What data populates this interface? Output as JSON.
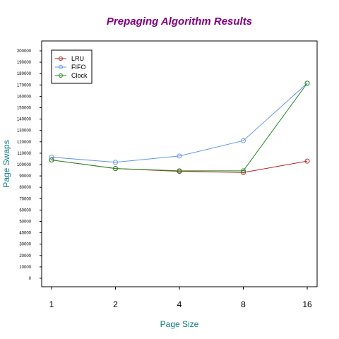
{
  "chart_data": {
    "type": "line",
    "title": "Prepaging Algorithm Results",
    "xlabel": "Page Size",
    "ylabel": "Page Swaps",
    "categories": [
      "1",
      "2",
      "4",
      "8",
      "16"
    ],
    "yticks": [
      "0",
      "10000",
      "20000",
      "30000",
      "40000",
      "50000",
      "60000",
      "70000",
      "80000",
      "90000",
      "100000",
      "110000",
      "120000",
      "130000",
      "140000",
      "150000",
      "160000",
      "170000",
      "180000",
      "190000",
      "200000"
    ],
    "ylim": [
      0,
      200000
    ],
    "grid": false,
    "legend_position": "top-left",
    "series": [
      {
        "name": "LRU",
        "color": "#b22222",
        "line_style": "solid",
        "marker": "open-circle",
        "values": [
          104000,
          96500,
          94000,
          93000,
          103000
        ]
      },
      {
        "name": "FIFO",
        "color": "#6495ed",
        "line_style": "solid",
        "marker": "open-circle",
        "values": [
          106500,
          102000,
          107500,
          121000,
          171500
        ]
      },
      {
        "name": "Clock",
        "color": "#228b22",
        "line_style": "solid",
        "marker": "open-circle",
        "values": [
          104000,
          96500,
          94500,
          94500,
          171500
        ]
      }
    ]
  }
}
